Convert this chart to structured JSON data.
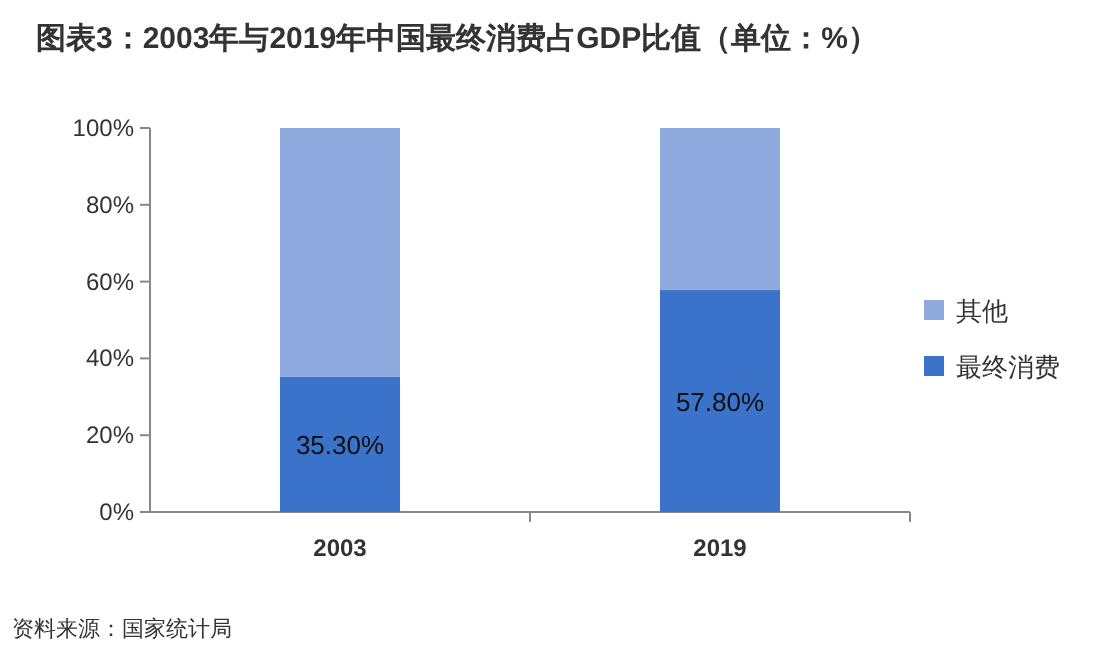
{
  "chart_data": {
    "type": "bar",
    "stacked": true,
    "title": "图表3：2003年与2019年中国最终消费占GDP比值（单位：%）",
    "categories": [
      "2003",
      "2019"
    ],
    "series": [
      {
        "name": "最终消费",
        "color": "#3a73c9",
        "values": [
          35.3,
          57.8
        ],
        "value_labels": [
          "35.30%",
          "57.80%"
        ]
      },
      {
        "name": "其他",
        "color": "#8eaadf",
        "values": [
          64.7,
          42.2
        ]
      }
    ],
    "ylim": [
      0,
      100
    ],
    "yticks": [
      {
        "value": 0,
        "label": "0%"
      },
      {
        "value": 20,
        "label": "20%"
      },
      {
        "value": 40,
        "label": "40%"
      },
      {
        "value": 60,
        "label": "60%"
      },
      {
        "value": 80,
        "label": "80%"
      },
      {
        "value": 100,
        "label": "100%"
      }
    ],
    "legend": "right",
    "grid": false,
    "annotations": [
      "资料来源：国家统计局"
    ]
  }
}
